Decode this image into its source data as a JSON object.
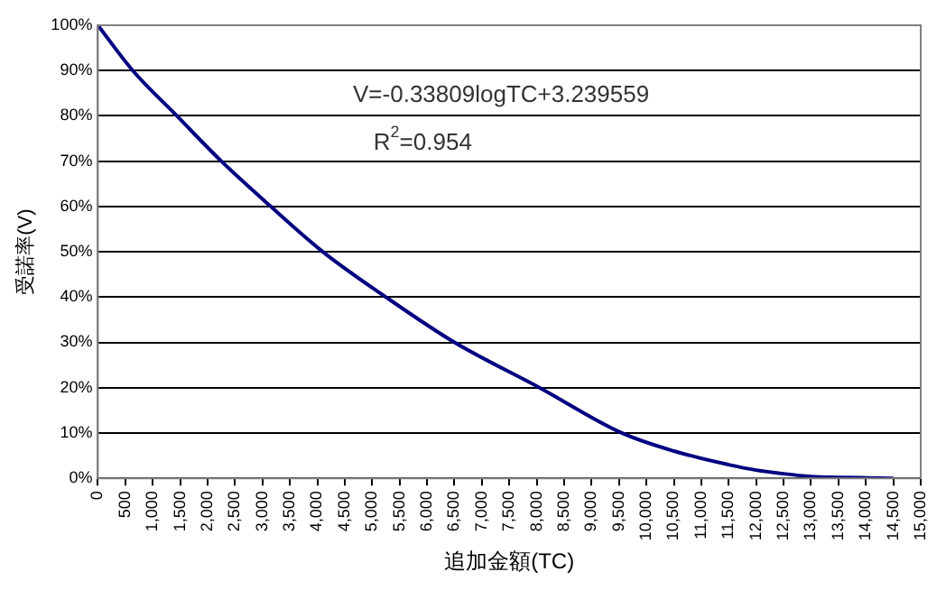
{
  "chart_data": {
    "type": "line",
    "xlabel": "追加金額(TC)",
    "ylabel": "受諾率(V)",
    "annotations": [
      "V=-0.33809logTC+3.239559",
      "R$^{2}$=0.954"
    ],
    "x": [
      0,
      636,
      1440,
      2250,
      3150,
      4100,
      5250,
      6500,
      8050,
      9550,
      10500,
      11500,
      12000,
      12500,
      13000,
      13500,
      14000,
      14500
    ],
    "series": [
      {
        "color": "#000080",
        "values": [
          100,
          90,
          80,
          70,
          60,
          50,
          40,
          30,
          20,
          10,
          6,
          3,
          1.8,
          1,
          0.4,
          0.2,
          0.1,
          0
        ]
      }
    ],
    "xlim": [
      0,
      15000
    ],
    "xticks": [
      0,
      {
        "value": 500,
        "label": "500"
      },
      {
        "value": 1000,
        "label": "1,000"
      },
      {
        "value": 1500,
        "label": "1,500"
      },
      {
        "value": 2000,
        "label": "2,000"
      },
      {
        "value": 2500,
        "label": "2,500"
      },
      {
        "value": 3000,
        "label": "3,000"
      },
      {
        "value": 3500,
        "label": "3,500"
      },
      {
        "value": 4000,
        "label": "4,000"
      },
      {
        "value": 4500,
        "label": "4,500"
      },
      {
        "value": 5000,
        "label": "5,000"
      },
      {
        "value": 5500,
        "label": "5,500"
      },
      {
        "value": 6000,
        "label": "6,000"
      },
      {
        "value": 6500,
        "label": "6,500"
      },
      {
        "value": 7000,
        "label": "7,000"
      },
      {
        "value": 7500,
        "label": "7,500"
      },
      {
        "value": 8000,
        "label": "8,000"
      },
      {
        "value": 8500,
        "label": "8,500"
      },
      {
        "value": 9000,
        "label": "9,000"
      },
      {
        "value": 9500,
        "label": "9,500"
      },
      {
        "value": 10000,
        "label": "10,000"
      },
      {
        "value": 10500,
        "label": "10,500"
      },
      {
        "value": 11000,
        "label": "11,000"
      },
      {
        "value": 11500,
        "label": "11,500"
      },
      {
        "value": 12000,
        "label": "12,000"
      },
      {
        "value": 12500,
        "label": "12,500"
      },
      {
        "value": 13000,
        "label": "13,000"
      },
      {
        "value": 13500,
        "label": "13,500"
      },
      {
        "value": 14000,
        "label": "14,000"
      },
      {
        "value": 14500,
        "label": "14,500"
      },
      {
        "value": 15000,
        "label": "15,000"
      }
    ],
    "ylim": [
      0,
      100
    ],
    "yticks": [
      {
        "value": 0,
        "label": "0%"
      },
      {
        "value": 10,
        "label": "10%"
      },
      {
        "value": 20,
        "label": "20%"
      },
      {
        "value": 30,
        "label": "30%"
      },
      {
        "value": 40,
        "label": "40%"
      },
      {
        "value": 50,
        "label": "50%"
      },
      {
        "value": 60,
        "label": "60%"
      },
      {
        "value": 70,
        "label": "70%"
      },
      {
        "value": 80,
        "label": "80%"
      },
      {
        "value": 90,
        "label": "90%"
      },
      {
        "value": 100,
        "label": "100%"
      }
    ],
    "grid": "y",
    "legend": false,
    "marker": "none",
    "line_style": "solid"
  }
}
